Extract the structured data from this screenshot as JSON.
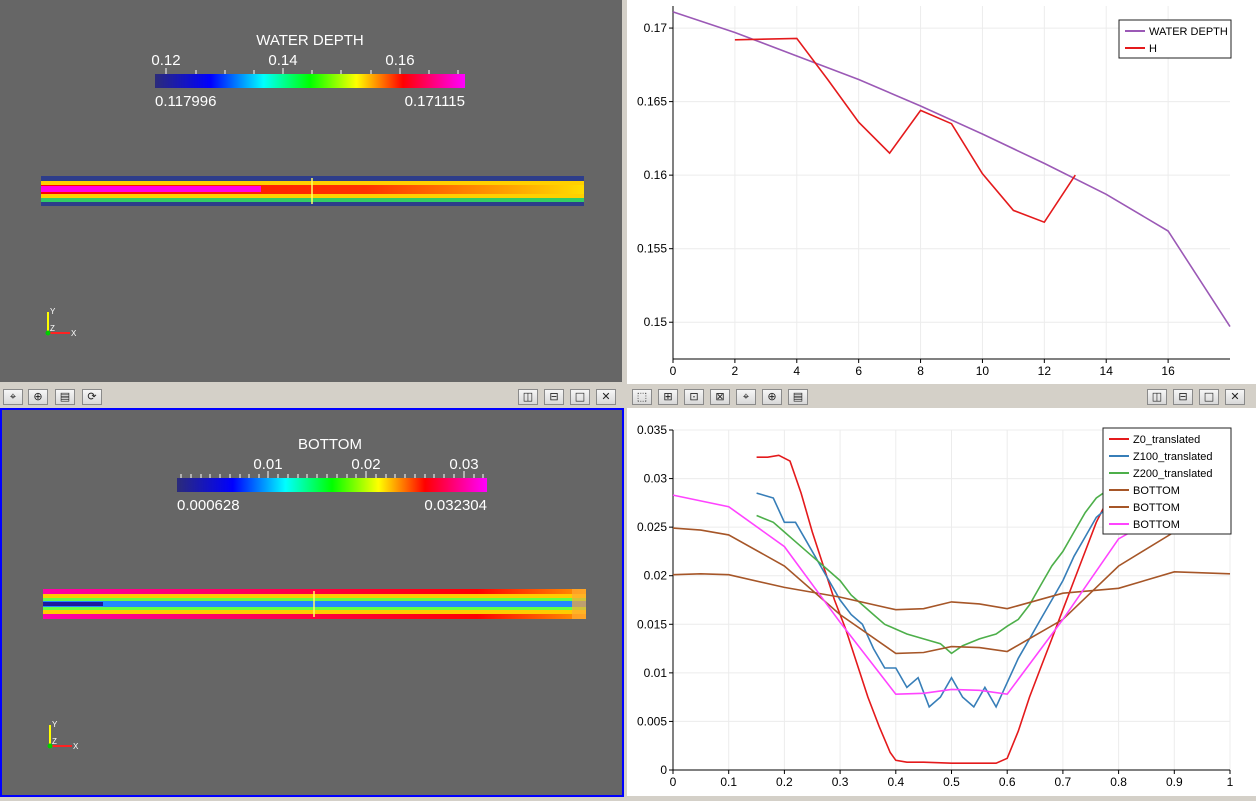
{
  "views": {
    "top_left": {
      "colorbar": {
        "title": "WATER DEPTH",
        "tick_labels": [
          "0.12",
          "0.14",
          "0.16"
        ],
        "range_min_label": "0.117996",
        "range_max_label": "0.171115"
      },
      "axes_triad": {
        "y": "Y",
        "z": "Z",
        "x": "X"
      }
    },
    "bottom_left": {
      "colorbar": {
        "title": "BOTTOM",
        "tick_labels": [
          "0.01",
          "0.02",
          "0.03"
        ],
        "range_min_label": "0.000628",
        "range_max_label": "0.032304"
      },
      "axes_triad": {
        "y": "Y",
        "z": "Z",
        "x": "X"
      }
    }
  },
  "toolbars": {
    "left_icons": [
      "camera-icon",
      "camera-ops-icon",
      "table-icon",
      "camera-refresh-icon"
    ],
    "right_icons": [
      "select-points-icon",
      "select-cells-icon",
      "select-block-icon",
      "select-polygon-icon",
      "camera-icon",
      "camera-ops-icon",
      "table-icon"
    ],
    "view_controls": [
      {
        "name": "split-horizontal-button",
        "glyph": "◫"
      },
      {
        "name": "split-vertical-button",
        "glyph": "⊟"
      },
      {
        "name": "maximize-button",
        "glyph": "□"
      },
      {
        "name": "close-button",
        "glyph": "✕"
      }
    ]
  },
  "chart_data": [
    {
      "type": "line",
      "xlim": [
        0,
        18
      ],
      "ylim": [
        0.1475,
        0.1715
      ],
      "x_ticks": [
        0,
        2,
        4,
        6,
        8,
        10,
        12,
        14,
        16
      ],
      "y_ticks": [
        0.15,
        0.155,
        0.16,
        0.165,
        0.17
      ],
      "x_tick_labels": [
        "0",
        "2",
        "4",
        "6",
        "8",
        "10",
        "12",
        "14",
        "16"
      ],
      "y_tick_labels": [
        "0.15",
        "0.155",
        "0.16",
        "0.165",
        "0.17"
      ],
      "grid": true,
      "legend_position": "top-right",
      "series": [
        {
          "name": "WATER DEPTH",
          "color": "#9b59b6",
          "x": [
            0,
            2,
            4,
            6,
            8,
            10,
            12,
            14,
            16,
            18
          ],
          "y": [
            0.1711,
            0.1697,
            0.1681,
            0.1665,
            0.1647,
            0.1628,
            0.1608,
            0.1587,
            0.1562,
            0.1497
          ]
        },
        {
          "name": "H",
          "color": "#e41a1c",
          "x": [
            2,
            4,
            5,
            6,
            7,
            8,
            9,
            10,
            11,
            12,
            13
          ],
          "y": [
            0.1692,
            0.1693,
            0.1665,
            0.1636,
            0.1615,
            0.1644,
            0.1635,
            0.1601,
            0.1576,
            0.1568,
            0.16
          ]
        }
      ]
    },
    {
      "type": "line",
      "xlim": [
        0,
        1
      ],
      "ylim": [
        0,
        0.035
      ],
      "x_ticks": [
        0,
        0.1,
        0.2,
        0.3,
        0.4,
        0.5,
        0.6,
        0.7,
        0.8,
        0.9,
        1
      ],
      "y_ticks": [
        0,
        0.005,
        0.01,
        0.015,
        0.02,
        0.025,
        0.03,
        0.035
      ],
      "x_tick_labels": [
        "0",
        "0.1",
        "0.2",
        "0.3",
        "0.4",
        "0.5",
        "0.6",
        "0.7",
        "0.8",
        "0.9",
        "1"
      ],
      "y_tick_labels": [
        "0",
        "0.005",
        "0.01",
        "0.015",
        "0.02",
        "0.025",
        "0.03",
        "0.035"
      ],
      "grid": true,
      "legend_position": "top-right",
      "series": [
        {
          "name": "Z0_translated",
          "color": "#e41a1c",
          "x": [
            0.15,
            0.17,
            0.19,
            0.21,
            0.23,
            0.25,
            0.27,
            0.29,
            0.31,
            0.33,
            0.35,
            0.37,
            0.39,
            0.4,
            0.42,
            0.45,
            0.5,
            0.55,
            0.58,
            0.6,
            0.62,
            0.64,
            0.66,
            0.68,
            0.7,
            0.72,
            0.74,
            0.76,
            0.78,
            0.8
          ],
          "y": [
            0.0322,
            0.0322,
            0.0324,
            0.0318,
            0.0285,
            0.0245,
            0.021,
            0.0175,
            0.0145,
            0.011,
            0.0075,
            0.0045,
            0.0018,
            0.001,
            0.0008,
            0.0008,
            0.0007,
            0.0007,
            0.0007,
            0.0012,
            0.004,
            0.0075,
            0.0105,
            0.0135,
            0.0165,
            0.0195,
            0.0225,
            0.0255,
            0.0278,
            0.029
          ]
        },
        {
          "name": "Z100_translated",
          "color": "#377eb8",
          "x": [
            0.15,
            0.18,
            0.2,
            0.22,
            0.24,
            0.26,
            0.28,
            0.3,
            0.32,
            0.34,
            0.36,
            0.38,
            0.4,
            0.42,
            0.44,
            0.46,
            0.48,
            0.5,
            0.52,
            0.54,
            0.56,
            0.58,
            0.6,
            0.62,
            0.64,
            0.66,
            0.68,
            0.7,
            0.72,
            0.74,
            0.76,
            0.8
          ],
          "y": [
            0.0285,
            0.028,
            0.0255,
            0.0255,
            0.0235,
            0.0215,
            0.0195,
            0.0175,
            0.016,
            0.015,
            0.0125,
            0.0105,
            0.0105,
            0.0085,
            0.0095,
            0.0065,
            0.0075,
            0.0095,
            0.0075,
            0.0065,
            0.0085,
            0.0065,
            0.009,
            0.0115,
            0.0135,
            0.0155,
            0.0175,
            0.0195,
            0.022,
            0.024,
            0.026,
            0.028
          ]
        },
        {
          "name": "Z200_translated",
          "color": "#4daf4a",
          "x": [
            0.15,
            0.18,
            0.2,
            0.22,
            0.25,
            0.28,
            0.3,
            0.32,
            0.34,
            0.36,
            0.38,
            0.4,
            0.42,
            0.45,
            0.48,
            0.5,
            0.52,
            0.55,
            0.58,
            0.6,
            0.62,
            0.64,
            0.66,
            0.68,
            0.7,
            0.72,
            0.74,
            0.76,
            0.78,
            0.8
          ],
          "y": [
            0.0262,
            0.0255,
            0.0245,
            0.0235,
            0.022,
            0.0205,
            0.0195,
            0.018,
            0.017,
            0.016,
            0.015,
            0.0145,
            0.014,
            0.0135,
            0.013,
            0.012,
            0.0128,
            0.0135,
            0.014,
            0.0148,
            0.0155,
            0.017,
            0.019,
            0.021,
            0.0225,
            0.0245,
            0.0265,
            0.028,
            0.0288,
            0.0295
          ]
        },
        {
          "name": "BOTTOM",
          "color": "#a65628",
          "x": [
            0,
            0.05,
            0.1,
            0.2,
            0.3,
            0.4,
            0.45,
            0.5,
            0.55,
            0.6,
            0.7,
            0.8,
            0.9,
            1
          ],
          "y": [
            0.0201,
            0.0202,
            0.0201,
            0.0188,
            0.0178,
            0.0165,
            0.0166,
            0.0173,
            0.0171,
            0.0166,
            0.0182,
            0.0187,
            0.0204,
            0.0202
          ]
        },
        {
          "name": "BOTTOM",
          "color": "#a65628",
          "x": [
            0,
            0.05,
            0.1,
            0.2,
            0.3,
            0.4,
            0.45,
            0.5,
            0.55,
            0.6,
            0.7,
            0.8,
            0.9,
            1
          ],
          "y": [
            0.0249,
            0.0247,
            0.0242,
            0.021,
            0.016,
            0.012,
            0.0121,
            0.0127,
            0.0126,
            0.0122,
            0.0155,
            0.021,
            0.0245,
            0.025
          ]
        },
        {
          "name": "BOTTOM",
          "color": "#ff44ff",
          "x": [
            0,
            0.1,
            0.2,
            0.3,
            0.4,
            0.45,
            0.5,
            0.55,
            0.6,
            0.7,
            0.8,
            0.9,
            1
          ],
          "y": [
            0.0283,
            0.0271,
            0.023,
            0.0152,
            0.0078,
            0.0079,
            0.0083,
            0.0082,
            0.0078,
            0.0155,
            0.0238,
            0.027,
            0.0283
          ]
        }
      ]
    }
  ]
}
